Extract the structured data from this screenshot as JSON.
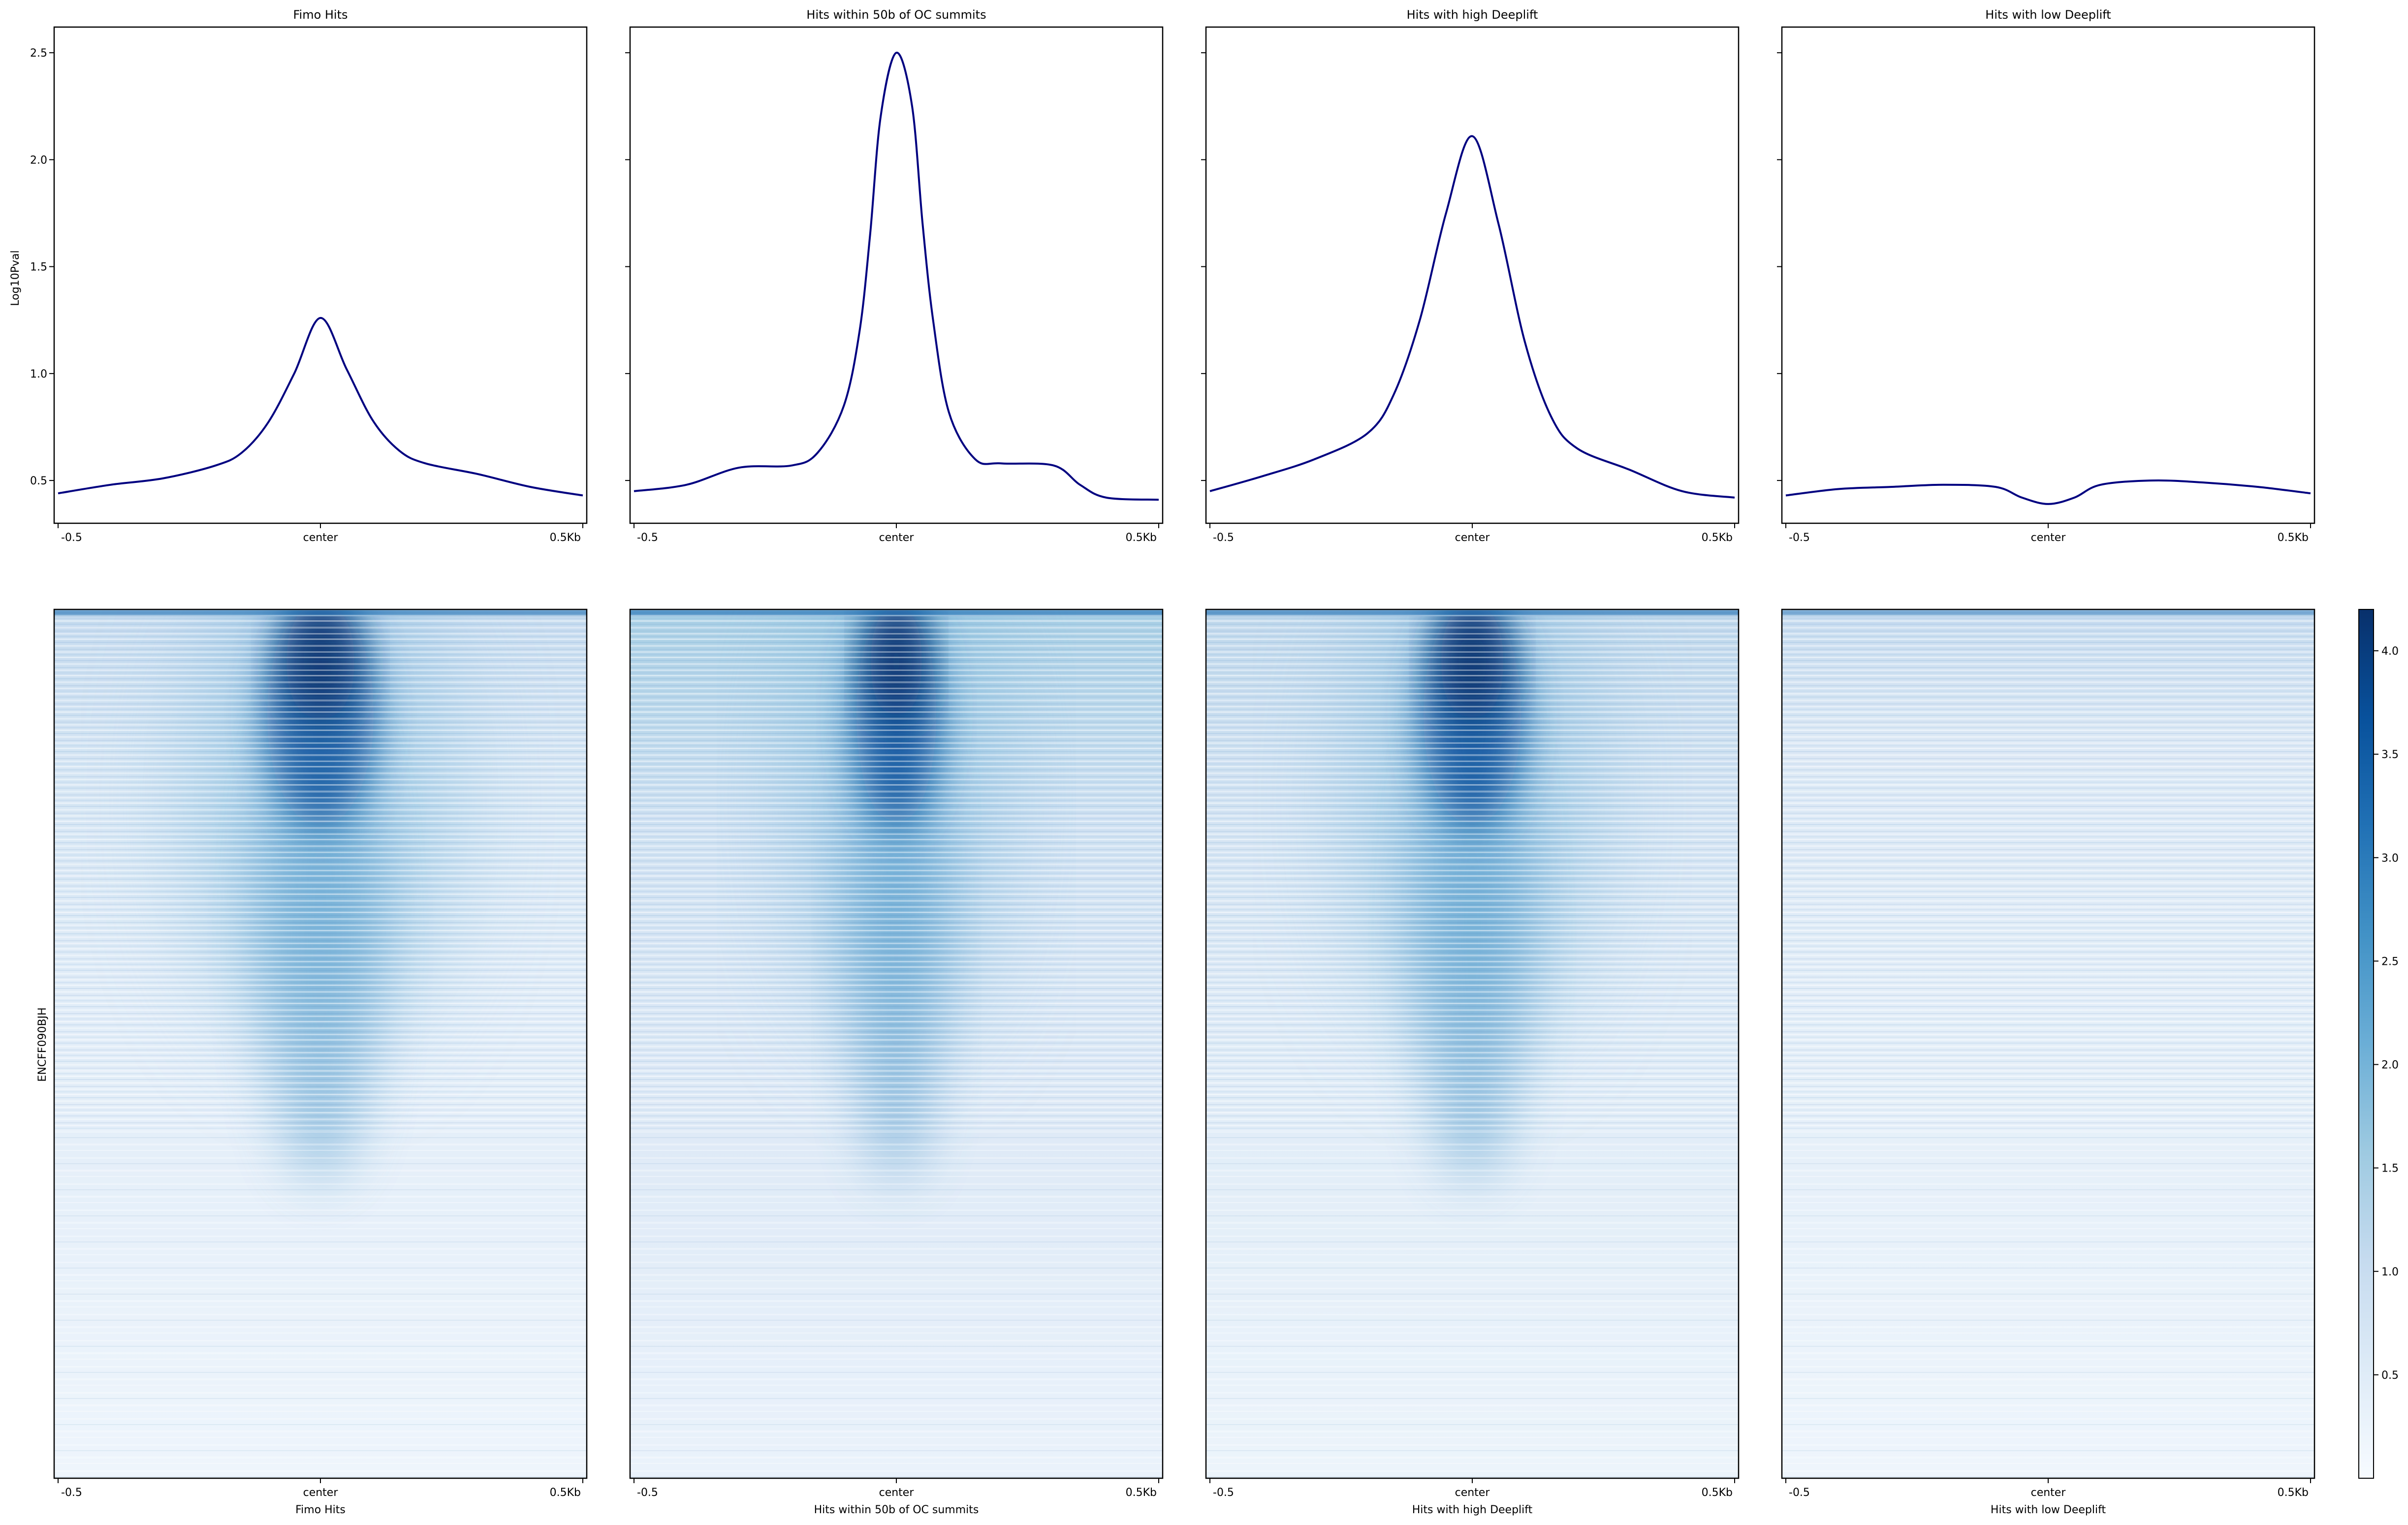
{
  "figure": {
    "panels": [
      {
        "title": "Fimo Hits",
        "xlabel": "Fimo Hits"
      },
      {
        "title": "Hits within 50b of OC summits",
        "xlabel": "Hits within 50b of OC summits"
      },
      {
        "title": "Hits with high Deeplift",
        "xlabel": "Hits with high Deeplift"
      },
      {
        "title": "Hits with low Deeplift",
        "xlabel": "Hits with low Deeplift"
      }
    ],
    "profile_ylabel": "Log10Pval",
    "heatmap_ylabel": "ENCFF090BJH",
    "xticks": [
      "-0.5",
      "center",
      "0.5Kb"
    ],
    "profile_yticks": [
      "0.5",
      "1.0",
      "1.5",
      "2.0",
      "2.5"
    ],
    "colorbar_ticks": [
      "0.5",
      "1.0",
      "1.5",
      "2.0",
      "2.5",
      "3.0",
      "3.5",
      "4.0"
    ],
    "colors": {
      "line": "#000080",
      "heat_low": "#f7fbff",
      "heat_high": "#08306b"
    }
  },
  "chart_data": [
    {
      "type": "line",
      "title": "Fimo Hits",
      "ylabel": "Log10Pval",
      "ylim": [
        0.3,
        2.62
      ],
      "x": [
        -0.5,
        -0.4,
        -0.3,
        -0.2,
        -0.15,
        -0.1,
        -0.05,
        0,
        0.05,
        0.1,
        0.15,
        0.2,
        0.3,
        0.4,
        0.5
      ],
      "values": [
        0.44,
        0.48,
        0.51,
        0.57,
        0.63,
        0.77,
        1.0,
        1.26,
        1.02,
        0.78,
        0.64,
        0.58,
        0.53,
        0.47,
        0.43
      ]
    },
    {
      "type": "line",
      "title": "Hits within 50b of OC summits",
      "ylim": [
        0.3,
        2.62
      ],
      "x": [
        -0.5,
        -0.4,
        -0.3,
        -0.2,
        -0.15,
        -0.1,
        -0.07,
        -0.05,
        -0.03,
        0,
        0.03,
        0.05,
        0.07,
        0.1,
        0.15,
        0.2,
        0.3,
        0.35,
        0.4,
        0.5
      ],
      "values": [
        0.45,
        0.48,
        0.56,
        0.57,
        0.63,
        0.85,
        1.2,
        1.65,
        2.2,
        2.5,
        2.25,
        1.7,
        1.25,
        0.82,
        0.6,
        0.58,
        0.57,
        0.48,
        0.42,
        0.41
      ]
    },
    {
      "type": "line",
      "title": "Hits with high Deeplift",
      "ylim": [
        0.3,
        2.62
      ],
      "x": [
        -0.5,
        -0.4,
        -0.3,
        -0.2,
        -0.15,
        -0.1,
        -0.05,
        0,
        0.05,
        0.1,
        0.15,
        0.2,
        0.3,
        0.4,
        0.5
      ],
      "values": [
        0.45,
        0.52,
        0.6,
        0.72,
        0.9,
        1.25,
        1.75,
        2.11,
        1.7,
        1.15,
        0.8,
        0.65,
        0.55,
        0.45,
        0.42
      ]
    },
    {
      "type": "line",
      "title": "Hits with low Deeplift",
      "ylim": [
        0.3,
        2.62
      ],
      "x": [
        -0.5,
        -0.4,
        -0.3,
        -0.2,
        -0.1,
        -0.05,
        0,
        0.05,
        0.1,
        0.2,
        0.3,
        0.4,
        0.5
      ],
      "values": [
        0.43,
        0.46,
        0.47,
        0.48,
        0.47,
        0.42,
        0.39,
        0.42,
        0.48,
        0.5,
        0.49,
        0.47,
        0.44
      ]
    },
    {
      "type": "heatmap",
      "panels": [
        "Fimo Hits",
        "Hits within 50b of OC summits",
        "Hits with high Deeplift",
        "Hits with low Deeplift"
      ],
      "ylabel": "ENCFF090BJH",
      "color_range": [
        0.0,
        4.2
      ],
      "peak_intensity": [
        3.9,
        4.2,
        4.1,
        1.6
      ],
      "peak_width_kb": [
        0.12,
        0.09,
        0.11,
        0.0
      ]
    }
  ]
}
